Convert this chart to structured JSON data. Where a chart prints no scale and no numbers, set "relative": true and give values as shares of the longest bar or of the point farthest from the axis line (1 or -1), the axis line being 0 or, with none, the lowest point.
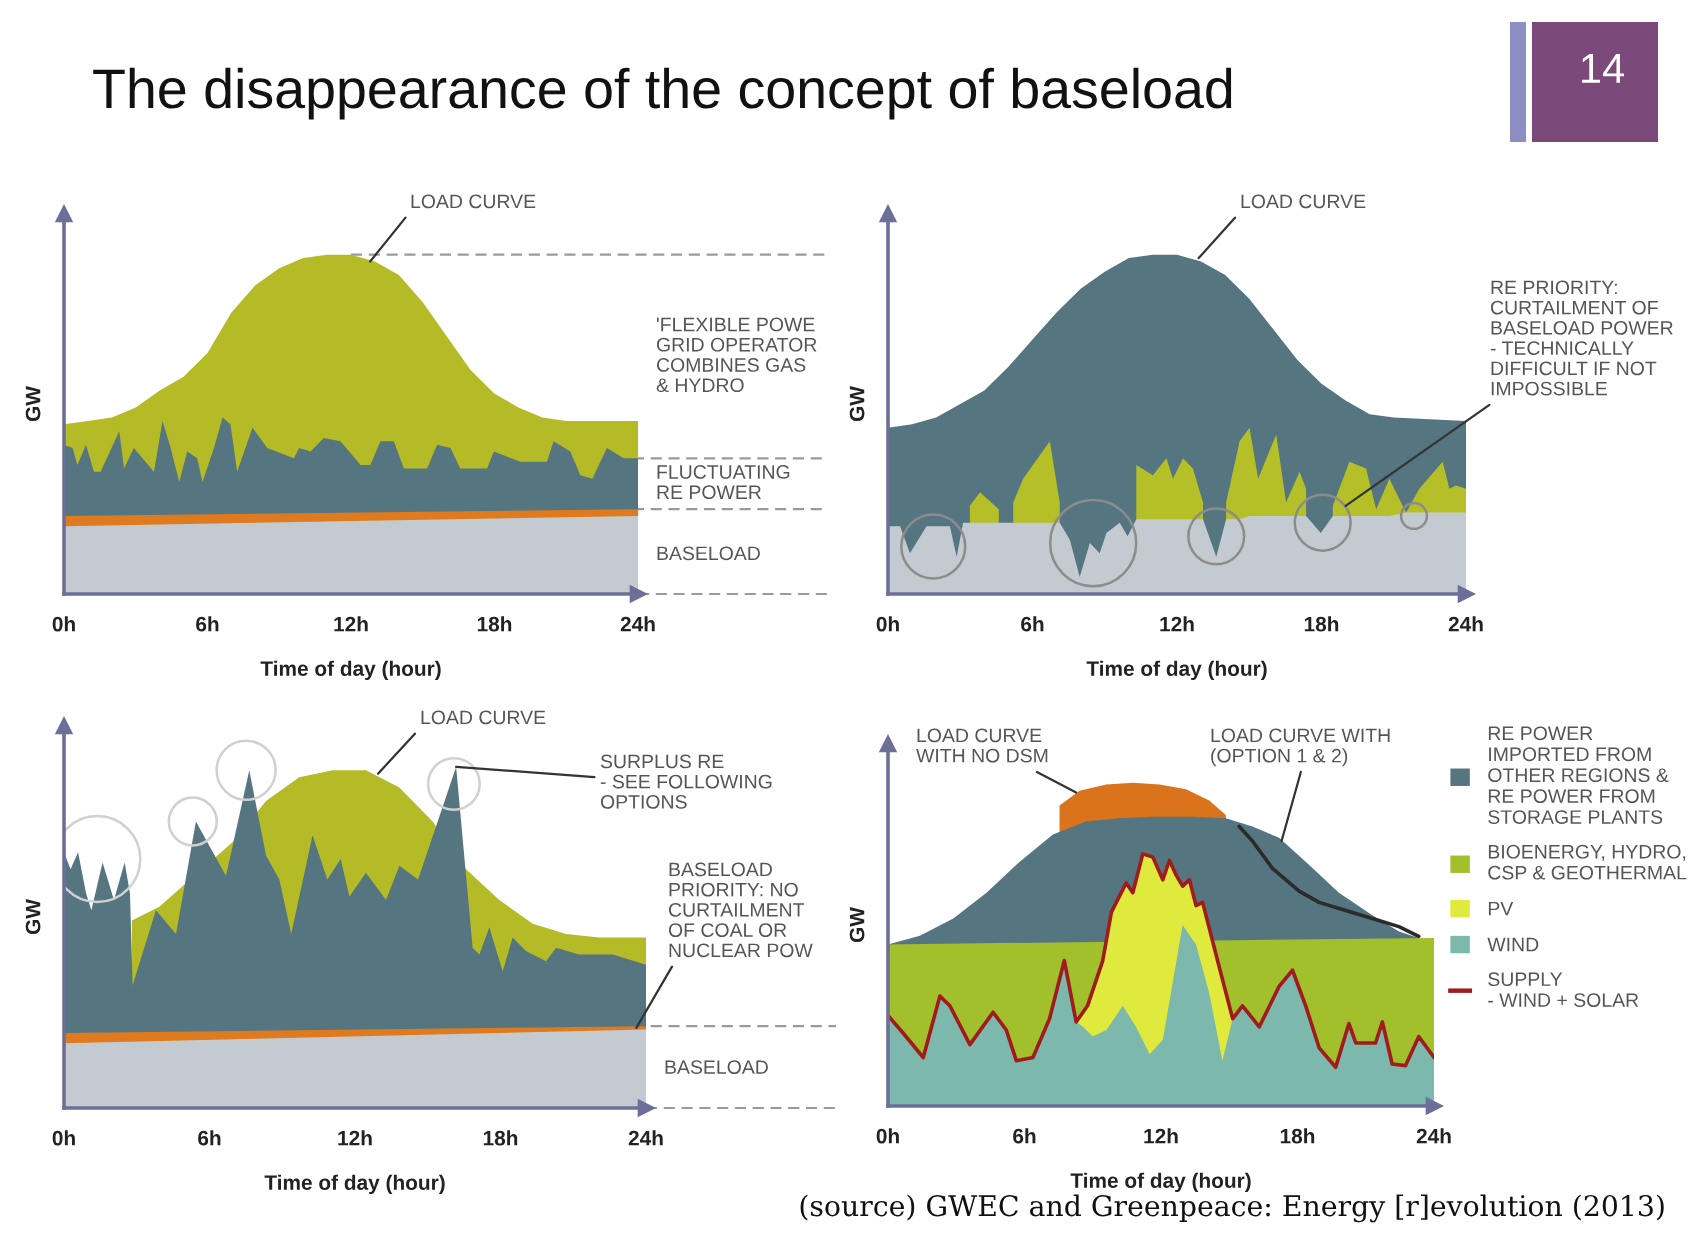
{
  "chart_data": [
    {
      "type": "area",
      "title": "The disappearance of the concept of baseload",
      "xlabel": "Time of day (hour)",
      "ylabel": "GW",
      "relative": true,
      "xlim": [
        0,
        24
      ],
      "xticks": [
        {
          "value": 0,
          "label": "0h"
        },
        {
          "value": 6,
          "label": "6h"
        },
        {
          "value": 12,
          "label": "12h"
        },
        {
          "value": 18,
          "label": "18h"
        },
        {
          "value": 24,
          "label": "24h"
        }
      ],
      "series": [
        {
          "name": "'FLEXIBLE POWE\nGRID OPERATOR\nCOMBINES GAS\n& HYDRO",
          "color": "#b4bb26",
          "x": [
            0,
            1,
            2,
            3,
            4,
            5,
            6,
            7,
            8,
            9,
            10,
            11,
            12,
            13,
            14,
            15,
            16,
            17,
            18,
            19,
            20,
            21,
            24
          ],
          "values": [
            0.5,
            0.51,
            0.52,
            0.55,
            0.6,
            0.64,
            0.71,
            0.83,
            0.91,
            0.96,
            0.99,
            1.0,
            1.0,
            0.98,
            0.94,
            0.86,
            0.76,
            0.66,
            0.59,
            0.55,
            0.52,
            0.51,
            0.51
          ]
        },
        {
          "name": "FLUCTUATING\nRE POWER",
          "color": "#557581",
          "x": [
            0,
            0.36,
            0.56,
            0.92,
            1.25,
            1.53,
            2.31,
            2.51,
            2.92,
            3.76,
            4.12,
            4.46,
            4.82,
            5.15,
            5.57,
            5.79,
            6.27,
            6.63,
            6.96,
            7.24,
            7.88,
            8.5,
            9.61,
            9.83,
            10.31,
            10.86,
            11.56,
            12.4,
            12.81,
            13.23,
            13.79,
            14.21,
            15.18,
            15.6,
            16.16,
            16.57,
            17.69,
            17.97,
            19.08,
            20.19,
            20.47,
            21.17,
            21.59,
            22.09,
            22.7,
            23.4,
            24
          ],
          "values": [
            0.44,
            0.43,
            0.38,
            0.44,
            0.36,
            0.36,
            0.48,
            0.37,
            0.43,
            0.36,
            0.51,
            0.43,
            0.33,
            0.42,
            0.4,
            0.33,
            0.43,
            0.52,
            0.5,
            0.36,
            0.49,
            0.43,
            0.4,
            0.43,
            0.42,
            0.46,
            0.45,
            0.38,
            0.38,
            0.45,
            0.45,
            0.37,
            0.37,
            0.44,
            0.43,
            0.37,
            0.37,
            0.42,
            0.39,
            0.39,
            0.45,
            0.42,
            0.35,
            0.34,
            0.43,
            0.4,
            0.4
          ]
        },
        {
          "color": "#e07a1e",
          "x": [
            0,
            24
          ],
          "values": [
            0.23,
            0.25
          ]
        },
        {
          "name": "BASELOAD",
          "color": "#c4cbd0",
          "x": [
            0,
            24
          ],
          "values": [
            0.2,
            0.23
          ]
        }
      ],
      "ref_lines": [
        {
          "axis": "y",
          "value": 1.0,
          "color": "#9a9a9a",
          "line_style": "dashed"
        },
        {
          "axis": "y",
          "value": 0.4,
          "color": "#9a9a9a",
          "line_style": "dashed"
        },
        {
          "axis": "y",
          "value": 0.25,
          "color": "#9a9a9a",
          "line_style": "dashed"
        }
      ],
      "annotations": [
        "14",
        {
          "text": "LOAD CURVE",
          "x": 12.8,
          "y": 0.98
        }
      ]
    },
    {
      "type": "area",
      "xlabel": "Time of day (hour)",
      "ylabel": "GW",
      "relative": true,
      "xlim": [
        0,
        24
      ],
      "xticks": [
        {
          "value": 0,
          "label": "0h"
        },
        {
          "value": 6,
          "label": "6h"
        },
        {
          "value": 12,
          "label": "12h"
        },
        {
          "value": 18,
          "label": "18h"
        },
        {
          "value": 24,
          "label": "24h"
        }
      ],
      "series": [
        {
          "color": "#557581",
          "x": [
            0,
            1,
            2,
            3,
            4,
            5,
            6,
            7,
            8,
            9,
            10,
            11,
            12,
            13,
            14,
            15,
            16,
            17,
            18,
            19,
            20,
            21,
            24
          ],
          "values": [
            0.49,
            0.5,
            0.52,
            0.56,
            0.6,
            0.67,
            0.75,
            0.83,
            0.9,
            0.95,
            0.99,
            1.0,
            1.0,
            0.98,
            0.94,
            0.87,
            0.78,
            0.69,
            0.62,
            0.57,
            0.53,
            0.52,
            0.51
          ]
        },
        {
          "color": "#b5bf27",
          "x": [
            3.4,
            3.82,
            4.6,
            4.92,
            5.2,
            5.61,
            6.72,
            7.13,
            7.55,
            10.31,
            11.0,
            11.56,
            11.83,
            12.25,
            12.66,
            13.08,
            13.63,
            14.04,
            14.6,
            15.01,
            15.37,
            16.12,
            16.53,
            17.09,
            17.36,
            17.97,
            18.47,
            19.16,
            19.85,
            20.27,
            20.82,
            21.51,
            22.06,
            23.03,
            23.31,
            23.58,
            24
          ],
          "values": [
            0.26,
            0.3,
            0.25,
            null,
            0.27,
            0.34,
            0.45,
            0.27,
            null,
            0.38,
            0.35,
            0.4,
            0.34,
            0.4,
            0.37,
            0.27,
            null,
            0.27,
            0.45,
            0.49,
            0.34,
            0.47,
            0.27,
            0.36,
            0.31,
            null,
            0.26,
            0.39,
            0.37,
            0.25,
            0.34,
            0.24,
            0.31,
            0.39,
            0.31,
            0.32,
            0.31
          ]
        },
        {
          "color": "#c4cbd0",
          "x": [
            0,
            0.22,
            0.5,
            0.91,
            1.6,
            2.16,
            2.57,
            2.85,
            3.12,
            3.82,
            4.92,
            5.61,
            6.72,
            7.13,
            7.55,
            7.96,
            8.38,
            8.79,
            9.07,
            9.62,
            9.95,
            10.31,
            11.0,
            11.56,
            11.83,
            12.25,
            12.66,
            13.08,
            13.63,
            14.04,
            14.6,
            15.01,
            15.37,
            16.12,
            16.53,
            17.09,
            17.36,
            17.97,
            18.47,
            19.16,
            19.85,
            20.27,
            20.82,
            21.51,
            22.06,
            23.03,
            23.31,
            23.58,
            24
          ],
          "values": [
            0.2,
            0.2,
            0.2,
            0.12,
            0.2,
            0.2,
            0.2,
            0.11,
            0.21,
            0.21,
            0.21,
            0.21,
            0.21,
            0.21,
            0.16,
            0.05,
            0.15,
            0.12,
            0.18,
            0.21,
            0.17,
            0.22,
            0.22,
            0.22,
            0.22,
            0.22,
            0.22,
            0.22,
            0.11,
            0.22,
            0.22,
            0.23,
            0.23,
            0.23,
            0.23,
            0.23,
            0.23,
            0.18,
            0.23,
            0.23,
            0.23,
            0.23,
            0.23,
            0.24,
            0.24,
            0.24,
            0.24,
            0.24,
            0.24
          ]
        },
        {
          "type": "bubble",
          "color": "#8c8c8c",
          "x": [
            1.88,
            8.52,
            13.63,
            18.05,
            21.84
          ],
          "values": [
            0.14,
            0.15,
            0.17,
            0.21,
            0.23
          ],
          "sizes": [
            0.55,
            1.0,
            0.42,
            0.42,
            0.09
          ]
        }
      ],
      "annotations": [
        {
          "text": "LOAD CURVE",
          "x": 12.9,
          "y": 0.99
        },
        {
          "text": "RE PRIORITY:\nCURTAILMENT OF\nBASELOAD POWER\n- TECHNICALLY\nDIFFICULT IF NOT\nIMPOSSIBLE",
          "x": 19.0,
          "y": 0.26
        }
      ]
    },
    {
      "type": "area",
      "xlabel": "Time of day (hour)",
      "ylabel": "GW",
      "relative": true,
      "xlim": [
        0,
        24
      ],
      "xticks": [
        {
          "value": 0,
          "label": "0h"
        },
        {
          "value": 6,
          "label": "6h"
        },
        {
          "value": 12,
          "label": "12h"
        },
        {
          "value": 18,
          "label": "18h"
        },
        {
          "value": 24,
          "label": "24h"
        }
      ],
      "series": [
        {
          "color": "#b4bb26",
          "x": [
            2.8,
            3.93,
            6.96,
            8.33,
            9.7,
            11.08,
            12.45,
            13.83,
            15.2,
            16.58,
            17.95,
            19.33,
            20.7,
            22.08,
            24
          ],
          "values": [
            0.55,
            0.59,
            0.78,
            0.9,
            0.97,
            0.99,
            0.99,
            0.94,
            0.84,
            0.7,
            0.61,
            0.54,
            0.51,
            0.5,
            0.5
          ]
        },
        {
          "color": "#557581",
          "x": [
            0,
            0.27,
            0.58,
            0.91,
            1.13,
            1.59,
            2.06,
            2.5,
            2.72,
            2.83,
            3.79,
            4.62,
            5.44,
            6.68,
            7.64,
            8.33,
            8.88,
            9.37,
            10.25,
            10.86,
            11.41,
            11.77,
            12.45,
            13.28,
            13.83,
            14.6,
            16.17,
            16.85,
            17.13,
            17.54,
            18.09,
            18.5,
            19.05,
            19.88,
            20.29,
            21.25,
            22.63,
            24
          ],
          "values": [
            0.75,
            0.7,
            0.75,
            0.63,
            0.58,
            0.72,
            0.61,
            0.72,
            0.63,
            0.36,
            0.58,
            0.51,
            0.84,
            0.68,
            0.99,
            0.74,
            0.67,
            0.51,
            0.8,
            0.67,
            0.73,
            0.62,
            0.69,
            0.61,
            0.71,
            0.67,
            1.0,
            0.47,
            0.45,
            0.53,
            0.4,
            0.5,
            0.46,
            0.43,
            0.47,
            0.45,
            0.45,
            0.42
          ]
        },
        {
          "color": "#e07a1e",
          "x": [
            0,
            24
          ],
          "values": [
            0.22,
            0.24
          ]
        },
        {
          "name": "BASELOAD",
          "color": "#c4cbd0",
          "x": [
            0,
            24
          ],
          "values": [
            0.19,
            0.23
          ]
        },
        {
          "type": "bubble",
          "color": "#d0d0d0",
          "x": [
            1.37,
            5.31,
            7.51,
            16.08
          ],
          "values": [
            0.73,
            0.84,
            0.99,
            0.95
          ],
          "sizes": [
            1.0,
            0.31,
            0.47,
            0.36
          ]
        }
      ],
      "ref_lines": [
        {
          "axis": "y",
          "value": 0.24,
          "color": "#9a9a9a",
          "line_style": "dashed"
        }
      ],
      "annotations": [
        {
          "text": "LOAD CURVE",
          "x": 12.95,
          "y": 0.98
        },
        {
          "text": "SURPLUS RE\n- SEE FOLLOWING\nOPTIONS",
          "x": 16.17,
          "y": 1.0
        },
        {
          "text": "BASELOAD\nPRIORITY: NO\nCURTAILMENT\nOF COAL OR\nNUCLEAR POW",
          "x": 23.6,
          "y": 0.235
        }
      ]
    },
    {
      "type": "area",
      "xlabel": "Time of day (hour)",
      "ylabel": "GW",
      "relative": true,
      "legend": "right",
      "xlim": [
        0,
        24
      ],
      "xticks": [
        {
          "value": 0,
          "label": "0h"
        },
        {
          "value": 6,
          "label": "6h"
        },
        {
          "value": 12,
          "label": "12h"
        },
        {
          "value": 18,
          "label": "18h"
        },
        {
          "value": 24,
          "label": "24h"
        }
      ],
      "series": [
        {
          "color": "#d9731c",
          "x": [
            7.54,
            8.42,
            9.59,
            10.76,
            11.93,
            13.1,
            14.12,
            14.85
          ],
          "values": [
            0.93,
            0.975,
            0.995,
            1.0,
            0.995,
            0.98,
            0.945,
            0.9
          ]
        },
        {
          "name": "RE POWER\nIMPORTED FROM\nOTHER REGIONS &\nRE POWER FROM\nSTORAGE PLANTS",
          "color": "#557581",
          "x": [
            0,
            1.4,
            2.87,
            4.33,
            5.79,
            7.25,
            8.71,
            10.18,
            11.64,
            13.39,
            14.85,
            16.02,
            17.19,
            18.36,
            19.82,
            21.29,
            22.46,
            23.33
          ],
          "values": [
            0.5,
            0.527,
            0.58,
            0.66,
            0.756,
            0.84,
            0.88,
            0.89,
            0.895,
            0.895,
            0.89,
            0.865,
            0.83,
            0.756,
            0.66,
            0.59,
            0.54,
            0.52
          ]
        },
        {
          "type": "line",
          "color": "#2b2b2b",
          "x": [
            15.44,
            16.02,
            16.9,
            18.07,
            18.95,
            20.12,
            21.29,
            22.46,
            23.33
          ],
          "values": [
            0.865,
            0.82,
            0.735,
            0.665,
            0.63,
            0.605,
            0.58,
            0.555,
            0.525
          ]
        },
        {
          "name": "BIOENERGY, HYDRO,\nCSP & GEOTHERMAL",
          "color": "#a2bf2c",
          "x": [
            0,
            24
          ],
          "values": [
            0.5,
            0.52
          ]
        },
        {
          "name": "PV",
          "color": "#e0ea3c",
          "x": [
            8.27,
            8.77,
            9.44,
            9.82,
            10.18,
            10.47,
            10.76,
            11.2,
            11.64,
            12.08,
            12.37,
            12.66,
            12.95,
            13.25,
            13.54,
            13.83,
            14.56,
            15.15
          ],
          "values": [
            0.26,
            0.31,
            0.45,
            0.6,
            0.65,
            0.69,
            0.66,
            0.78,
            0.77,
            0.7,
            0.76,
            0.715,
            0.68,
            0.7,
            0.62,
            0.63,
            0.43,
            0.27
          ]
        },
        {
          "name": "WIND",
          "color": "#7db8ad",
          "x": [
            0,
            0.67,
            1.55,
            2.28,
            2.72,
            3.6,
            4.62,
            5.2,
            5.64,
            6.37,
            7.1,
            7.75,
            8.27,
            8.57,
            9.0,
            9.6,
            10.32,
            10.9,
            11.5,
            12.08,
            12.95,
            13.54,
            14.12,
            14.7,
            15.15,
            15.58,
            16.32,
            17.19,
            17.78,
            18.36,
            18.95,
            19.68,
            20.26,
            20.56,
            21.43,
            21.73,
            22.16,
            22.75,
            23.33,
            24
          ],
          "values": [
            0.28,
            0.225,
            0.15,
            0.34,
            0.31,
            0.19,
            0.29,
            0.235,
            0.14,
            0.15,
            0.27,
            0.45,
            0.26,
            0.245,
            0.215,
            0.235,
            0.31,
            0.245,
            0.16,
            0.205,
            0.56,
            0.5,
            0.35,
            0.14,
            0.27,
            0.31,
            0.245,
            0.37,
            0.42,
            0.31,
            0.18,
            0.12,
            0.255,
            0.195,
            0.195,
            0.26,
            0.13,
            0.125,
            0.215,
            0.15
          ]
        },
        {
          "name": "SUPPLY\n- WIND + SOLAR",
          "type": "line",
          "color": "#a01c1c",
          "x": [
            0,
            0.67,
            1.55,
            2.28,
            2.72,
            3.6,
            4.62,
            5.2,
            5.64,
            6.37,
            7.1,
            7.75,
            8.27,
            8.77,
            9.44,
            9.82,
            10.18,
            10.47,
            10.76,
            11.2,
            11.64,
            12.08,
            12.37,
            12.66,
            12.95,
            13.25,
            13.54,
            13.83,
            14.56,
            15.15,
            15.58,
            16.32,
            17.19,
            17.78,
            18.36,
            18.95,
            19.68,
            20.26,
            20.56,
            21.43,
            21.73,
            22.16,
            22.75,
            23.33,
            24
          ],
          "values": [
            0.28,
            0.225,
            0.15,
            0.34,
            0.31,
            0.19,
            0.29,
            0.235,
            0.14,
            0.15,
            0.27,
            0.45,
            0.26,
            0.31,
            0.45,
            0.6,
            0.65,
            0.69,
            0.66,
            0.78,
            0.77,
            0.7,
            0.76,
            0.715,
            0.68,
            0.7,
            0.62,
            0.63,
            0.43,
            0.27,
            0.31,
            0.245,
            0.37,
            0.42,
            0.31,
            0.18,
            0.12,
            0.255,
            0.195,
            0.195,
            0.26,
            0.13,
            0.125,
            0.215,
            0.15
          ]
        }
      ],
      "annotations": [
        {
          "text": "LOAD CURVE\nWITH NO DSM",
          "x": 8.27,
          "y": 0.97
        },
        {
          "text": "LOAD CURVE WITH\n(OPTION 1 & 2)",
          "x": 17.3,
          "y": 0.82
        },
        "(source) GWEC and Greenpeace: Energy [r]evolution (2013)"
      ]
    }
  ]
}
